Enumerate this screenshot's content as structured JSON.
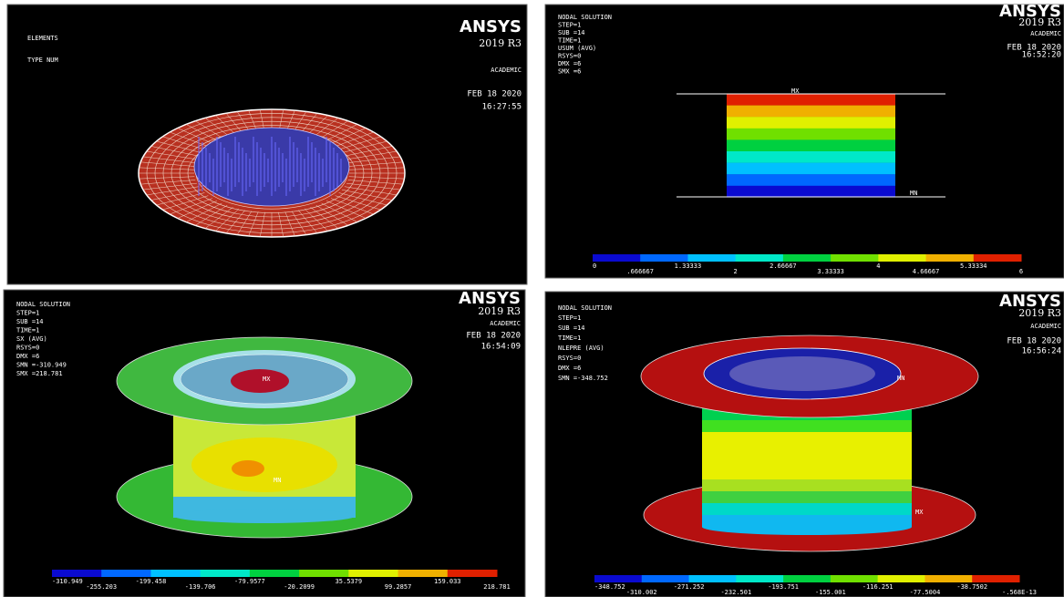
{
  "panels": [
    {
      "info": [
        "ELEMENTS",
        "TYPE NUM"
      ],
      "logo": "ANSYS",
      "version": "2019 R3",
      "edition": "ACADEMIC",
      "date": "FEB 18 2020",
      "time": "16:27:55"
    },
    {
      "info": [
        "NODAL SOLUTION",
        "STEP=1",
        "SUB =14",
        "TIME=1",
        "USUM      (AVG)",
        "RSYS=0",
        "DMX =6",
        "SMX =6"
      ],
      "logo": "ANSYS",
      "version": "2019 R3",
      "edition": "ACADEMIC",
      "date": "FEB 18 2020",
      "time": "16:52:20",
      "labels": [
        "MX",
        "MN"
      ],
      "legend": [
        "0",
        ".666667",
        "1.33333",
        "2",
        "2.66667",
        "3.33333",
        "4",
        "4.66667",
        "5.33334",
        "6"
      ]
    },
    {
      "info": [
        "NODAL SOLUTION",
        "STEP=1",
        "SUB =14",
        "TIME=1",
        "SX        (AVG)",
        "RSYS=0",
        "DMX =6",
        "SMN =-310.949",
        "SMX =218.781"
      ],
      "logo": "ANSYS",
      "version": "2019 R3",
      "edition": "ACADEMIC",
      "date": "FEB 18 2020",
      "time": "16:54:09",
      "labels": [
        "MX",
        "MN"
      ],
      "legend": [
        "-310.949",
        "-255.203",
        "-199.458",
        "-139.706",
        "-79.9577",
        "-20.2099",
        "35.5379",
        "99.2857",
        "159.033",
        "218.781"
      ]
    },
    {
      "info": [
        "NODAL SOLUTION",
        "STEP=1",
        "SUB =14",
        "TIME=1",
        "NLEPRE    (AVG)",
        "RSYS=0",
        "DMX =6",
        "SMN =-348.752"
      ],
      "logo": "ANSYS",
      "version": "2019 R3",
      "edition": "ACADEMIC",
      "date": "FEB 18 2020",
      "time": "16:56:24",
      "labels": [
        "MN",
        "MX"
      ],
      "legend": [
        "-348.752",
        "-310.002",
        "-271.252",
        "-232.501",
        "-193.751",
        "-155.001",
        "-116.251",
        "-77.5004",
        "-38.7502",
        "-.568E-13"
      ]
    }
  ]
}
